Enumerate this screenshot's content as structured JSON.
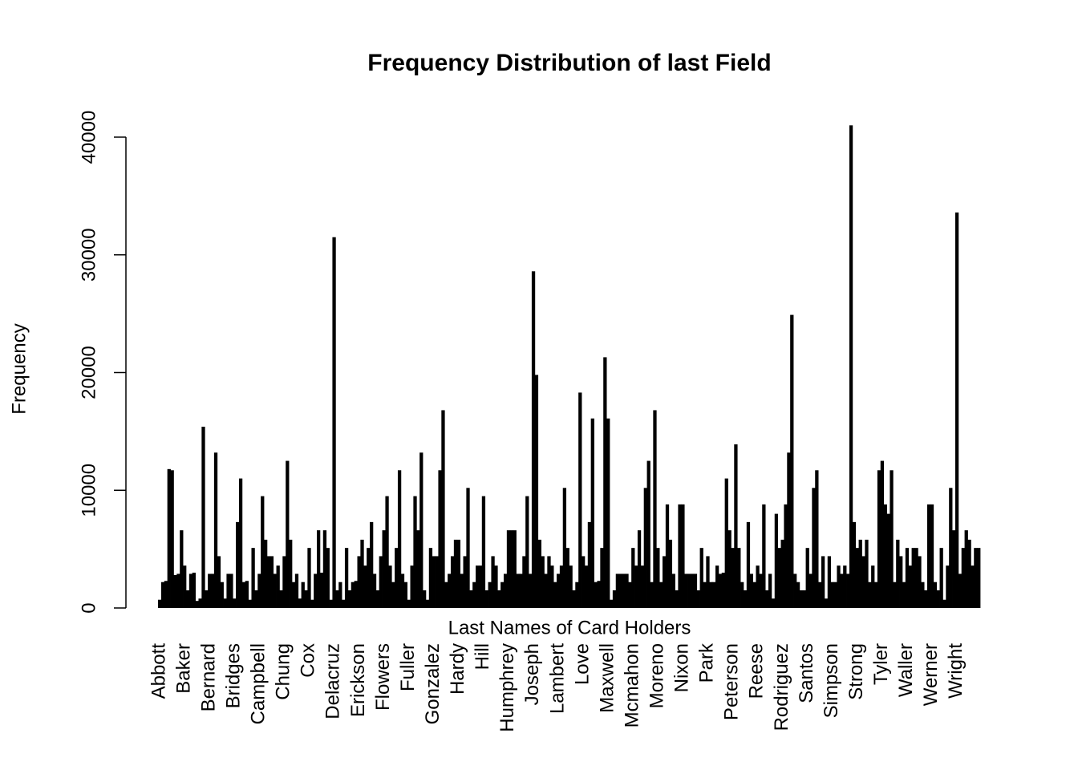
{
  "chart_data": {
    "type": "bar",
    "title": "Frequency Distribution of last Field",
    "x_label": "Last Names of Card Holders",
    "y_label": "Frequency",
    "color": "#000000",
    "ylim": [
      0,
      41000
    ],
    "yticks": [
      0,
      10000,
      20000,
      30000,
      40000
    ],
    "grid": false,
    "categories": [
      "Abbott",
      null,
      null,
      null,
      null,
      null,
      null,
      null,
      "Baker",
      null,
      null,
      null,
      null,
      null,
      null,
      null,
      "Bernard",
      null,
      null,
      null,
      null,
      null,
      null,
      null,
      "Bridges",
      null,
      null,
      null,
      null,
      null,
      null,
      null,
      "Campbell",
      null,
      null,
      null,
      null,
      null,
      null,
      null,
      "Chung",
      null,
      null,
      null,
      null,
      null,
      null,
      null,
      "Cox",
      null,
      null,
      null,
      null,
      null,
      null,
      null,
      "Delacruz",
      null,
      null,
      null,
      null,
      null,
      null,
      null,
      "Erickson",
      null,
      null,
      null,
      null,
      null,
      null,
      null,
      "Flowers",
      null,
      null,
      null,
      null,
      null,
      null,
      null,
      "Fuller",
      null,
      null,
      null,
      null,
      null,
      null,
      null,
      "Gonzalez",
      null,
      null,
      null,
      null,
      null,
      null,
      null,
      "Hardy",
      null,
      null,
      null,
      null,
      null,
      null,
      null,
      "Hill",
      null,
      null,
      null,
      null,
      null,
      null,
      null,
      "Humphrey",
      null,
      null,
      null,
      null,
      null,
      null,
      null,
      "Joseph",
      null,
      null,
      null,
      null,
      null,
      null,
      null,
      "Lambert",
      null,
      null,
      null,
      null,
      null,
      null,
      null,
      "Love",
      null,
      null,
      null,
      null,
      null,
      null,
      null,
      "Maxwell",
      null,
      null,
      null,
      null,
      null,
      null,
      null,
      "Mcmahon",
      null,
      null,
      null,
      null,
      null,
      null,
      null,
      "Moreno",
      null,
      null,
      null,
      null,
      null,
      null,
      null,
      "Nixon",
      null,
      null,
      null,
      null,
      null,
      null,
      null,
      "Park",
      null,
      null,
      null,
      null,
      null,
      null,
      null,
      "Peterson",
      null,
      null,
      null,
      null,
      null,
      null,
      null,
      "Reese",
      null,
      null,
      null,
      null,
      null,
      null,
      null,
      "Rodriguez",
      null,
      null,
      null,
      null,
      null,
      null,
      null,
      "Santos",
      null,
      null,
      null,
      null,
      null,
      null,
      null,
      "Simpson",
      null,
      null,
      null,
      null,
      null,
      null,
      null,
      "Strong",
      null,
      null,
      null,
      null,
      null,
      null,
      null,
      "Tyler",
      null,
      null,
      null,
      null,
      null,
      null,
      null,
      "Waller",
      null,
      null,
      null,
      null,
      null,
      null,
      null,
      "Werner",
      null,
      null,
      null,
      null,
      null,
      null,
      null,
      "Wright",
      null,
      null,
      null,
      null,
      null,
      null,
      null
    ],
    "values": [
      700,
      2200,
      2300,
      11800,
      11700,
      2800,
      2900,
      6600,
      3600,
      1500,
      2900,
      3000,
      600,
      800,
      15400,
      1500,
      2900,
      2900,
      13200,
      4400,
      2200,
      800,
      2900,
      2900,
      800,
      7300,
      11000,
      2200,
      2300,
      700,
      5100,
      1500,
      2900,
      9500,
      5800,
      4400,
      4400,
      2900,
      3600,
      1500,
      4400,
      12500,
      5800,
      2200,
      2900,
      800,
      2200,
      1500,
      5100,
      700,
      2900,
      6600,
      3000,
      6600,
      5100,
      700,
      31500,
      1500,
      2200,
      700,
      5100,
      1500,
      2200,
      2300,
      4400,
      5800,
      3600,
      5100,
      7300,
      2900,
      1500,
      4400,
      6600,
      9500,
      3600,
      2200,
      5100,
      11700,
      2900,
      2200,
      700,
      3600,
      9500,
      6600,
      13200,
      1500,
      700,
      5100,
      4400,
      4400,
      11700,
      16800,
      2200,
      2900,
      4400,
      5800,
      5800,
      2900,
      4400,
      10200,
      1500,
      2200,
      3600,
      3600,
      9500,
      1500,
      2200,
      4400,
      3600,
      1500,
      2200,
      2900,
      6600,
      6600,
      6600,
      2900,
      2900,
      4400,
      9500,
      2900,
      28600,
      19800,
      5800,
      4400,
      2900,
      4400,
      3600,
      2200,
      2900,
      3600,
      10200,
      5100,
      3600,
      1500,
      2200,
      18300,
      4400,
      3600,
      7300,
      16100,
      2200,
      2300,
      5100,
      21300,
      16100,
      700,
      1500,
      2900,
      2900,
      2900,
      2900,
      2200,
      5100,
      3600,
      6600,
      3600,
      10200,
      12500,
      2200,
      16800,
      5100,
      2200,
      4400,
      8800,
      5800,
      2900,
      1500,
      8800,
      8800,
      2900,
      2900,
      2900,
      2900,
      1500,
      5100,
      2200,
      4400,
      2200,
      2200,
      3600,
      2900,
      3000,
      11000,
      6600,
      5100,
      13900,
      5100,
      2200,
      1500,
      7300,
      2900,
      2200,
      3600,
      2900,
      8800,
      1500,
      2900,
      800,
      8000,
      5100,
      5800,
      8800,
      13200,
      24900,
      2900,
      2200,
      1500,
      1500,
      5100,
      2900,
      10200,
      11700,
      2200,
      4400,
      800,
      4400,
      2200,
      2200,
      3600,
      2900,
      3600,
      2900,
      41000,
      7300,
      5100,
      5800,
      4400,
      5800,
      2200,
      3600,
      2200,
      11700,
      12500,
      8800,
      8000,
      11700,
      2200,
      5800,
      4400,
      2200,
      5100,
      3600,
      5100,
      5100,
      4400,
      2200,
      1500,
      8800,
      8800,
      2200,
      1500,
      5100,
      700,
      3600,
      10200,
      6600,
      33600,
      2900,
      5100,
      6600,
      5800,
      3600,
      5100,
      5100
    ]
  }
}
